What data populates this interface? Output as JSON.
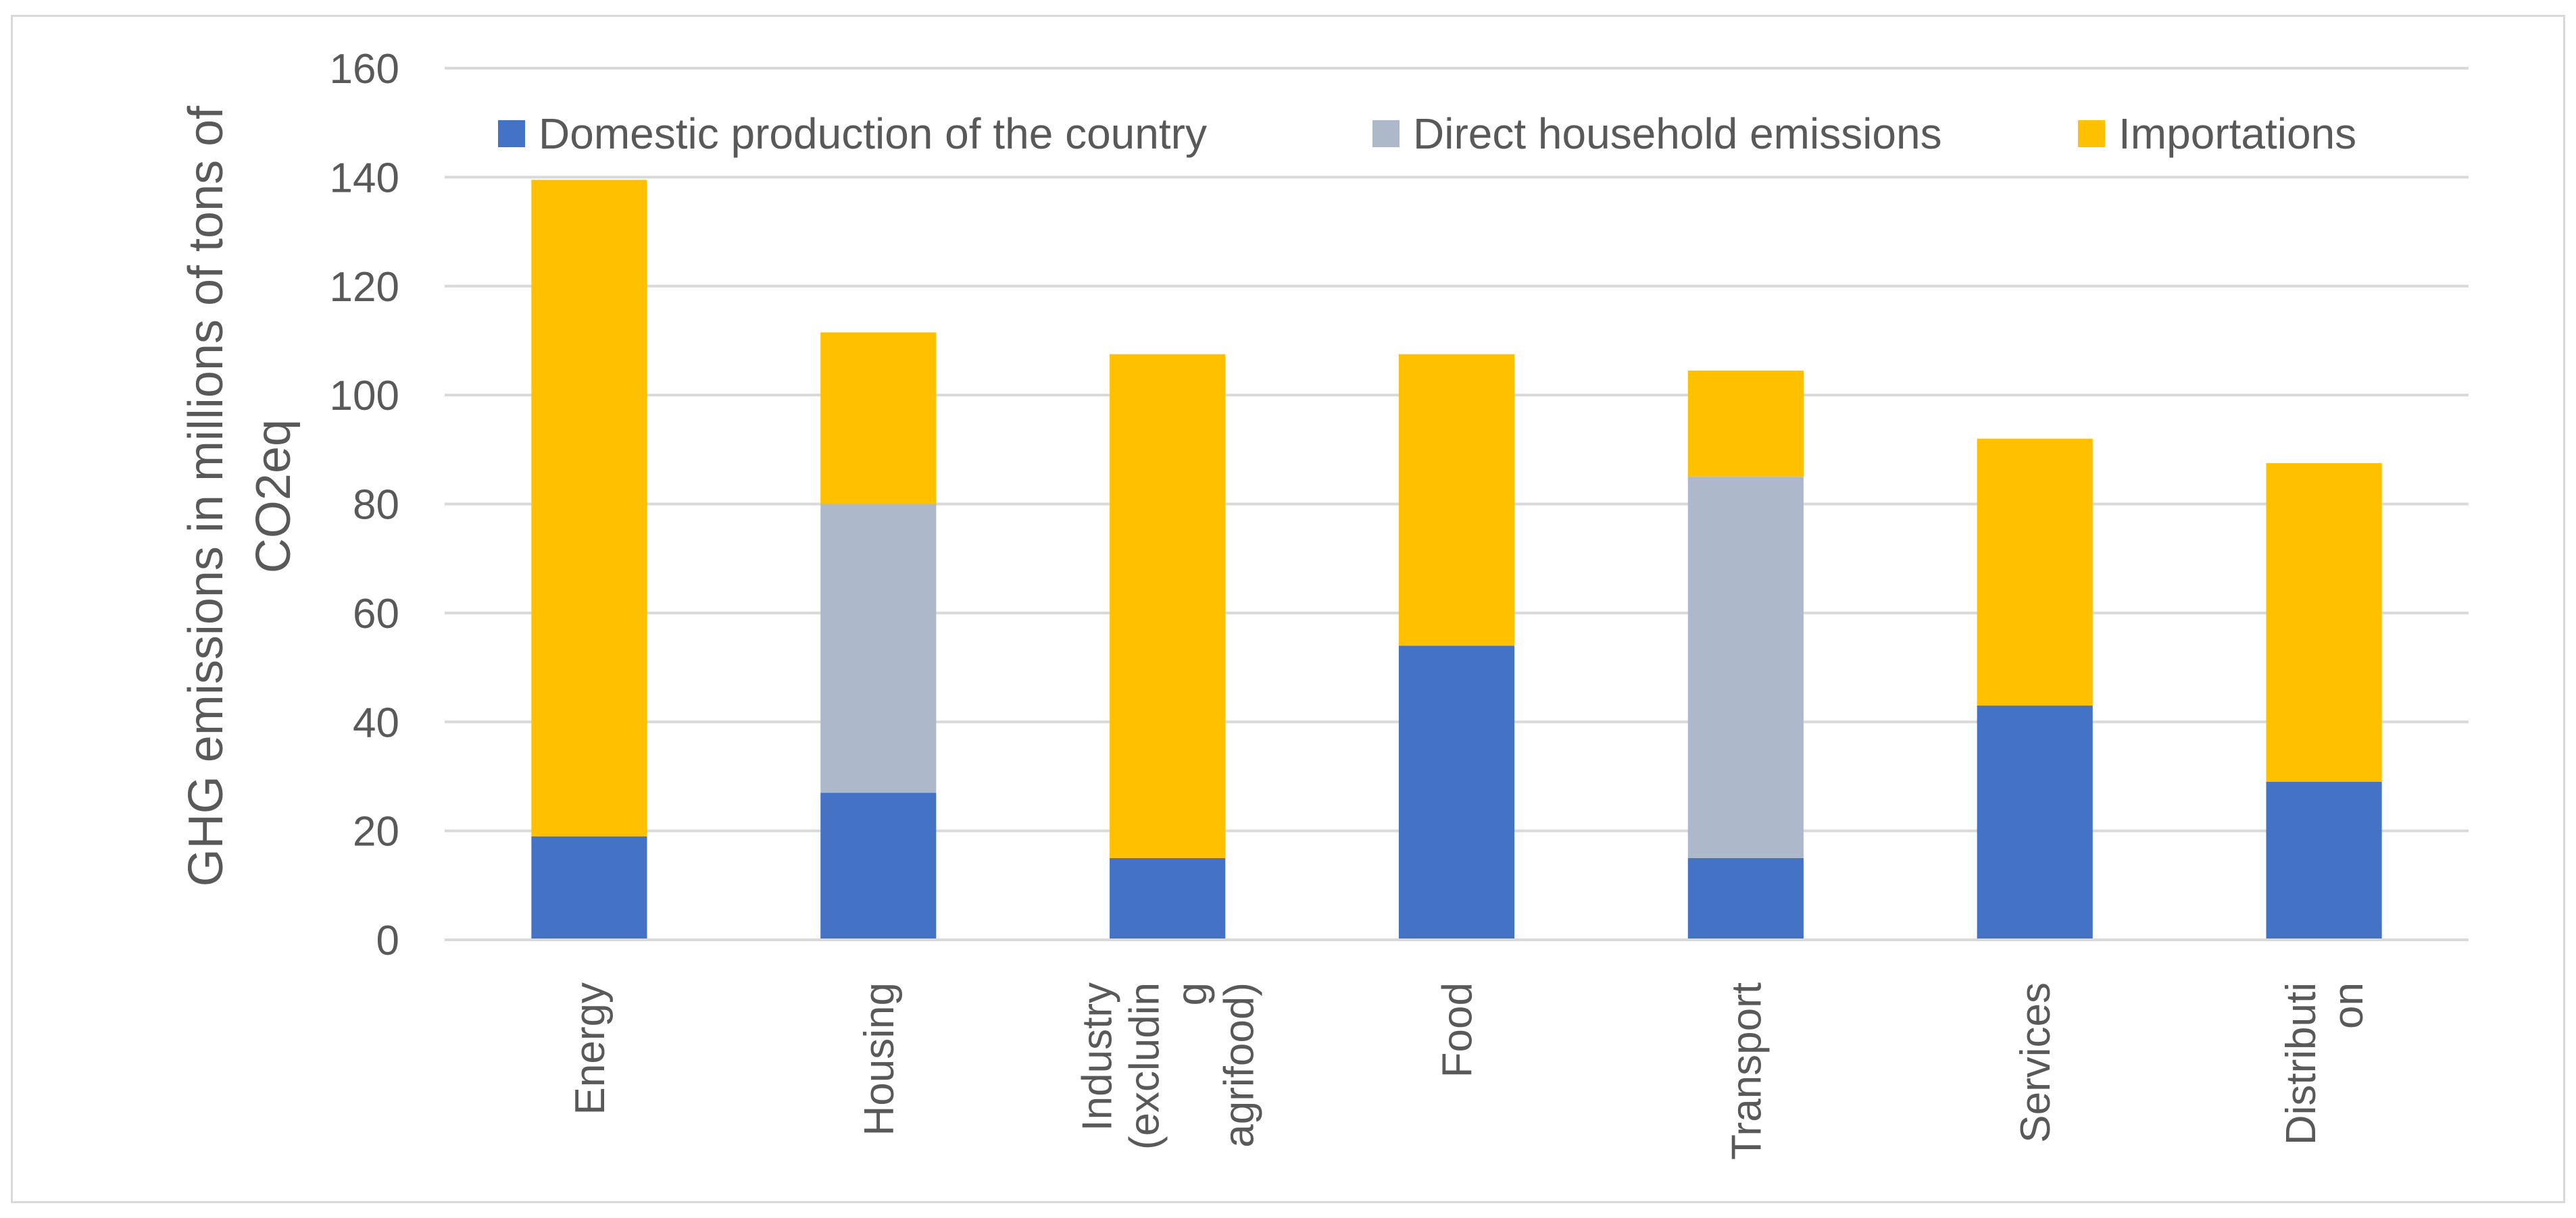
{
  "chart_data": {
    "type": "bar",
    "stacked": true,
    "title": "",
    "xlabel": "",
    "ylabel_lines": [
      "GHG emissions in millions of tons of",
      "CO2eq"
    ],
    "ylim": [
      0,
      160
    ],
    "yticks": [
      0,
      20,
      40,
      60,
      80,
      100,
      120,
      140,
      160
    ],
    "grid": true,
    "legend_position": "top",
    "categories": [
      {
        "name": "Energy",
        "lines": [
          "Energy"
        ]
      },
      {
        "name": "Housing",
        "lines": [
          "Housing"
        ]
      },
      {
        "name": "Industry (excluding agrifood)",
        "lines": [
          "Industry",
          "(excludin",
          "g",
          "agrifood)"
        ]
      },
      {
        "name": "Food",
        "lines": [
          "Food"
        ]
      },
      {
        "name": "Transport",
        "lines": [
          "Transport"
        ]
      },
      {
        "name": "Services",
        "lines": [
          "Services"
        ]
      },
      {
        "name": "Distribution",
        "lines": [
          "Distributi",
          "on"
        ]
      }
    ],
    "series": [
      {
        "name": "Domestic production of the country",
        "color": "#4472c4",
        "values": [
          19,
          27,
          15,
          54,
          15,
          43,
          29
        ]
      },
      {
        "name": "Direct household emissions",
        "color": "#adb9ca",
        "values": [
          0,
          53,
          0,
          0,
          70,
          0,
          0
        ]
      },
      {
        "name": "Importations",
        "color": "#ffc000",
        "values": [
          120.5,
          31.5,
          92.5,
          53.5,
          19.5,
          49,
          58.5
        ]
      }
    ]
  },
  "colors": {
    "grid": "#d9d9d9",
    "text": "#595959"
  }
}
